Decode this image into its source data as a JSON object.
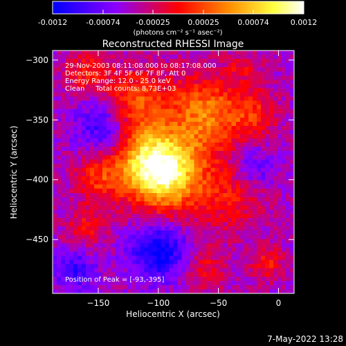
{
  "chart_data": {
    "type": "heatmap",
    "title": "Reconstructed RHESSI Image",
    "xlabel": "Heliocentric X (arcsec)",
    "ylabel": "Heliocentric Y (arcsec)",
    "xlim": [
      -188,
      13
    ],
    "ylim": [
      -495,
      -292
    ],
    "xticks": [
      -150,
      -100,
      -50,
      0
    ],
    "yticks": [
      -300,
      -350,
      -400,
      -450
    ],
    "colorbar": {
      "min": -0.0012,
      "max": 0.0012,
      "ticks": [
        "-0.0012",
        "-0.00074",
        "-0.00025",
        "0.00025",
        "0.00074",
        "0.0012"
      ],
      "unit_label": "(photons cm⁻² s⁻¹ asec⁻²)",
      "colors": [
        "#0000ff",
        "#8a00ff",
        "#ff0000",
        "#ff8c00",
        "#ffff40",
        "#ffffff"
      ]
    },
    "info": {
      "time": "29-Nov-2003 08:11:08.000 to 08:17:08.000",
      "detectors": "Detectors: 3F 4F 5F 6F 7F 8F, Att 0",
      "energy": "Energy Range: 12.0 - 25.0 keV",
      "clean": "Clean     Total counts: 8.73E+03"
    },
    "peak_label": "Position of Peak = [-93,-395]",
    "peak": [
      -93,
      -395
    ],
    "sources": [
      {
        "x": -93,
        "y": -395,
        "amp": 0.0012,
        "sigma": 22
      },
      {
        "x": -60,
        "y": -345,
        "amp": 0.00085,
        "sigma": 22
      },
      {
        "x": -120,
        "y": -335,
        "amp": 0.0007,
        "sigma": 20
      },
      {
        "x": -110,
        "y": -385,
        "amp": 0.0008,
        "sigma": 20
      },
      {
        "x": -150,
        "y": -398,
        "amp": 0.00055,
        "sigma": 14
      },
      {
        "x": -40,
        "y": -415,
        "amp": 0.00045,
        "sigma": 20
      },
      {
        "x": -160,
        "y": -440,
        "amp": 0.00042,
        "sigma": 12
      },
      {
        "x": -20,
        "y": -345,
        "amp": 0.00045,
        "sigma": 14
      },
      {
        "x": -10,
        "y": -470,
        "amp": 0.0005,
        "sigma": 10
      },
      {
        "x": -60,
        "y": -475,
        "amp": 0.0004,
        "sigma": 12
      },
      {
        "x": -160,
        "y": -310,
        "amp": 0.0005,
        "sigma": 12
      },
      {
        "x": -30,
        "y": -305,
        "amp": 0.0003,
        "sigma": 10
      },
      {
        "x": -145,
        "y": -355,
        "amp": -0.0006,
        "sigma": 16
      },
      {
        "x": -100,
        "y": -460,
        "amp": -0.0008,
        "sigma": 16
      },
      {
        "x": -20,
        "y": -390,
        "amp": -0.0004,
        "sigma": 12
      },
      {
        "x": -170,
        "y": -475,
        "amp": -0.0005,
        "sigma": 12
      }
    ]
  },
  "footer": {
    "timestamp": "7-May-2022 13:28"
  }
}
